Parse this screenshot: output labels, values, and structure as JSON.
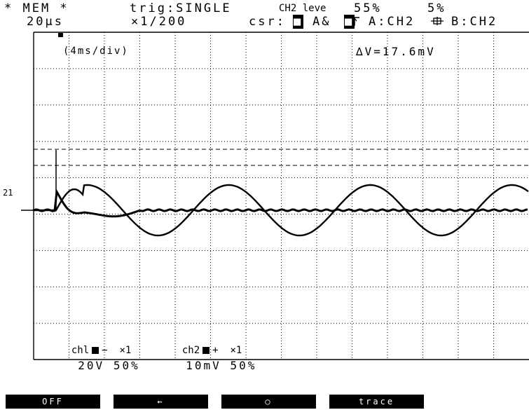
{
  "header": {
    "mode": "* MEM *",
    "trigger": "trig:SINGLE",
    "trigger_source": "CH2 leve",
    "trigger_slope_icon": "rising-edge-icon",
    "trigger_level": "55%",
    "pretrigger_icon": "pretrigger-icon",
    "pretrigger": "5%",
    "sample_rate": "20µs",
    "time_ratio": "×1/200",
    "cursor_label": "csr:",
    "cursor_ab": "A&",
    "cursor_a": "A:CH2",
    "cursor_b": "B:CH2"
  },
  "screen": {
    "time_div": "(4ms/div)",
    "delta_v": "∆V=17.6mV",
    "level_marker": "21"
  },
  "channels": {
    "ch1": {
      "label": "chl",
      "polarity": "−",
      "mag": "×1",
      "range": "20V",
      "position": "50%"
    },
    "ch2": {
      "label": "ch2",
      "polarity": "+",
      "mag": "×1",
      "range": "10mV",
      "position": "50%"
    }
  },
  "softkeys": [
    "OFF",
    "←",
    "○",
    "trace"
  ]
}
